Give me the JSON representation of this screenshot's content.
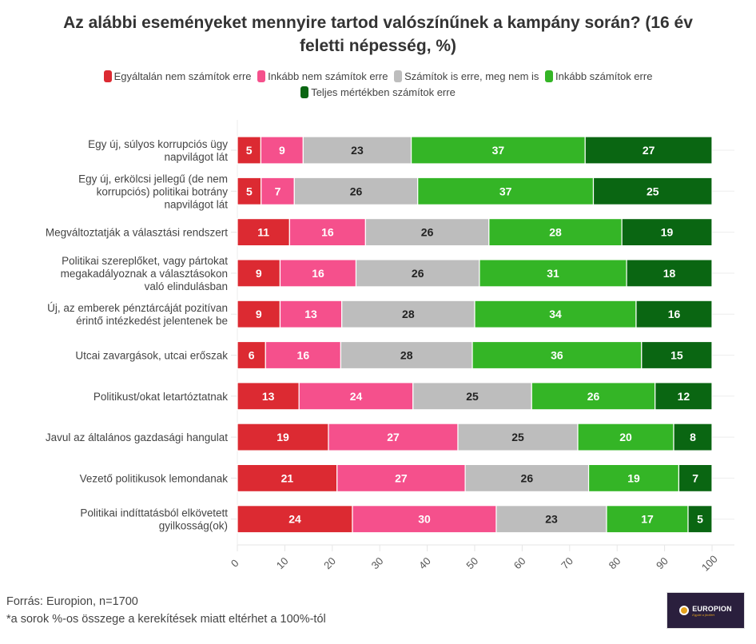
{
  "chart_data": {
    "type": "bar",
    "orientation": "horizontal",
    "stacked": true,
    "title": "Az alábbi eseményeket mennyire tartod valószínűnek a kampány során? (16 év feletti népesség, %)",
    "xlabel": "",
    "ylabel": "",
    "xlim": [
      0,
      100
    ],
    "xticks": [
      "0",
      "10",
      "20",
      "30",
      "40",
      "50",
      "60",
      "70",
      "80",
      "90",
      "100"
    ],
    "grid": true,
    "legend_position": "top-center",
    "categories": [
      "Egy új, súlyos korrupciós ügy napvilágot lát",
      "Egy új, erkölcsi jellegű (de nem korrupciós) politikai botrány napvilágot lát",
      "Megváltoztatják a választási rendszert",
      "Politikai szereplőket, vagy pártokat megakadályoznak a választásokon való elindulásban",
      "Új, az emberek pénztárcáját pozitívan érintő intézkedést jelentenek be",
      "Utcai zavargások, utcai erőszak",
      "Politikust/okat letartóztatnak",
      "Javul az általános gazdasági hangulat",
      "Vezető politikusok lemondanak",
      "Politikai indíttatásból elkövetett gyilkosság(ok)"
    ],
    "category_lines": [
      [
        "Egy új, súlyos korrupciós ügy",
        "napvilágot lát"
      ],
      [
        "Egy új, erkölcsi jellegű (de nem",
        "korrupciós) politikai botrány",
        "napvilágot lát"
      ],
      [
        "Megváltoztatják a választási rendszert"
      ],
      [
        "Politikai szereplőket, vagy pártokat",
        "megakadályoznak a választásokon",
        "való elindulásban"
      ],
      [
        "Új, az emberek pénztárcáját pozitívan",
        "érintő intézkedést jelentenek be"
      ],
      [
        "Utcai zavargások, utcai erőszak"
      ],
      [
        "Politikust/okat letartóztatnak"
      ],
      [
        "Javul az általános gazdasági hangulat"
      ],
      [
        "Vezető politikusok lemondanak"
      ],
      [
        "Politikai indíttatásból elkövetett",
        "gyilkosság(ok)"
      ]
    ],
    "series": [
      {
        "name": "Egyáltalán nem számítok erre",
        "color": "#dc2a32",
        "label_color": "#ffffff",
        "values": [
          5,
          5,
          11,
          9,
          9,
          6,
          13,
          19,
          21,
          24
        ]
      },
      {
        "name": "Inkább nem számítok erre",
        "color": "#f5508c",
        "label_color": "#ffffff",
        "values": [
          9,
          7,
          16,
          16,
          13,
          16,
          24,
          27,
          27,
          30
        ]
      },
      {
        "name": "Számítok is erre, meg nem is",
        "color": "#bdbdbd",
        "label_color": "#222222",
        "values": [
          23,
          26,
          26,
          26,
          28,
          28,
          25,
          25,
          26,
          23
        ]
      },
      {
        "name": "Inkább számítok erre",
        "color": "#34b526",
        "label_color": "#ffffff",
        "values": [
          37,
          37,
          28,
          31,
          34,
          36,
          26,
          20,
          19,
          17
        ]
      },
      {
        "name": "Teljes mértékben számítok erre",
        "color": "#0a6612",
        "label_color": "#ffffff",
        "values": [
          27,
          25,
          19,
          18,
          16,
          15,
          12,
          8,
          7,
          5
        ]
      }
    ]
  },
  "header": {
    "title_line1": "Az alábbi eseményeket mennyire tartod valószínűnek a kampány során? (16 év",
    "title_line2": "feletti népesség, %)"
  },
  "footer": {
    "source": "Forrás: Europion, n=1700",
    "note": "*a sorok %-os összege a kerekítések miatt eltérhet a 100%-tól"
  },
  "logo": {
    "name": "EUROPION",
    "tagline": "Együtt a jövőért"
  }
}
